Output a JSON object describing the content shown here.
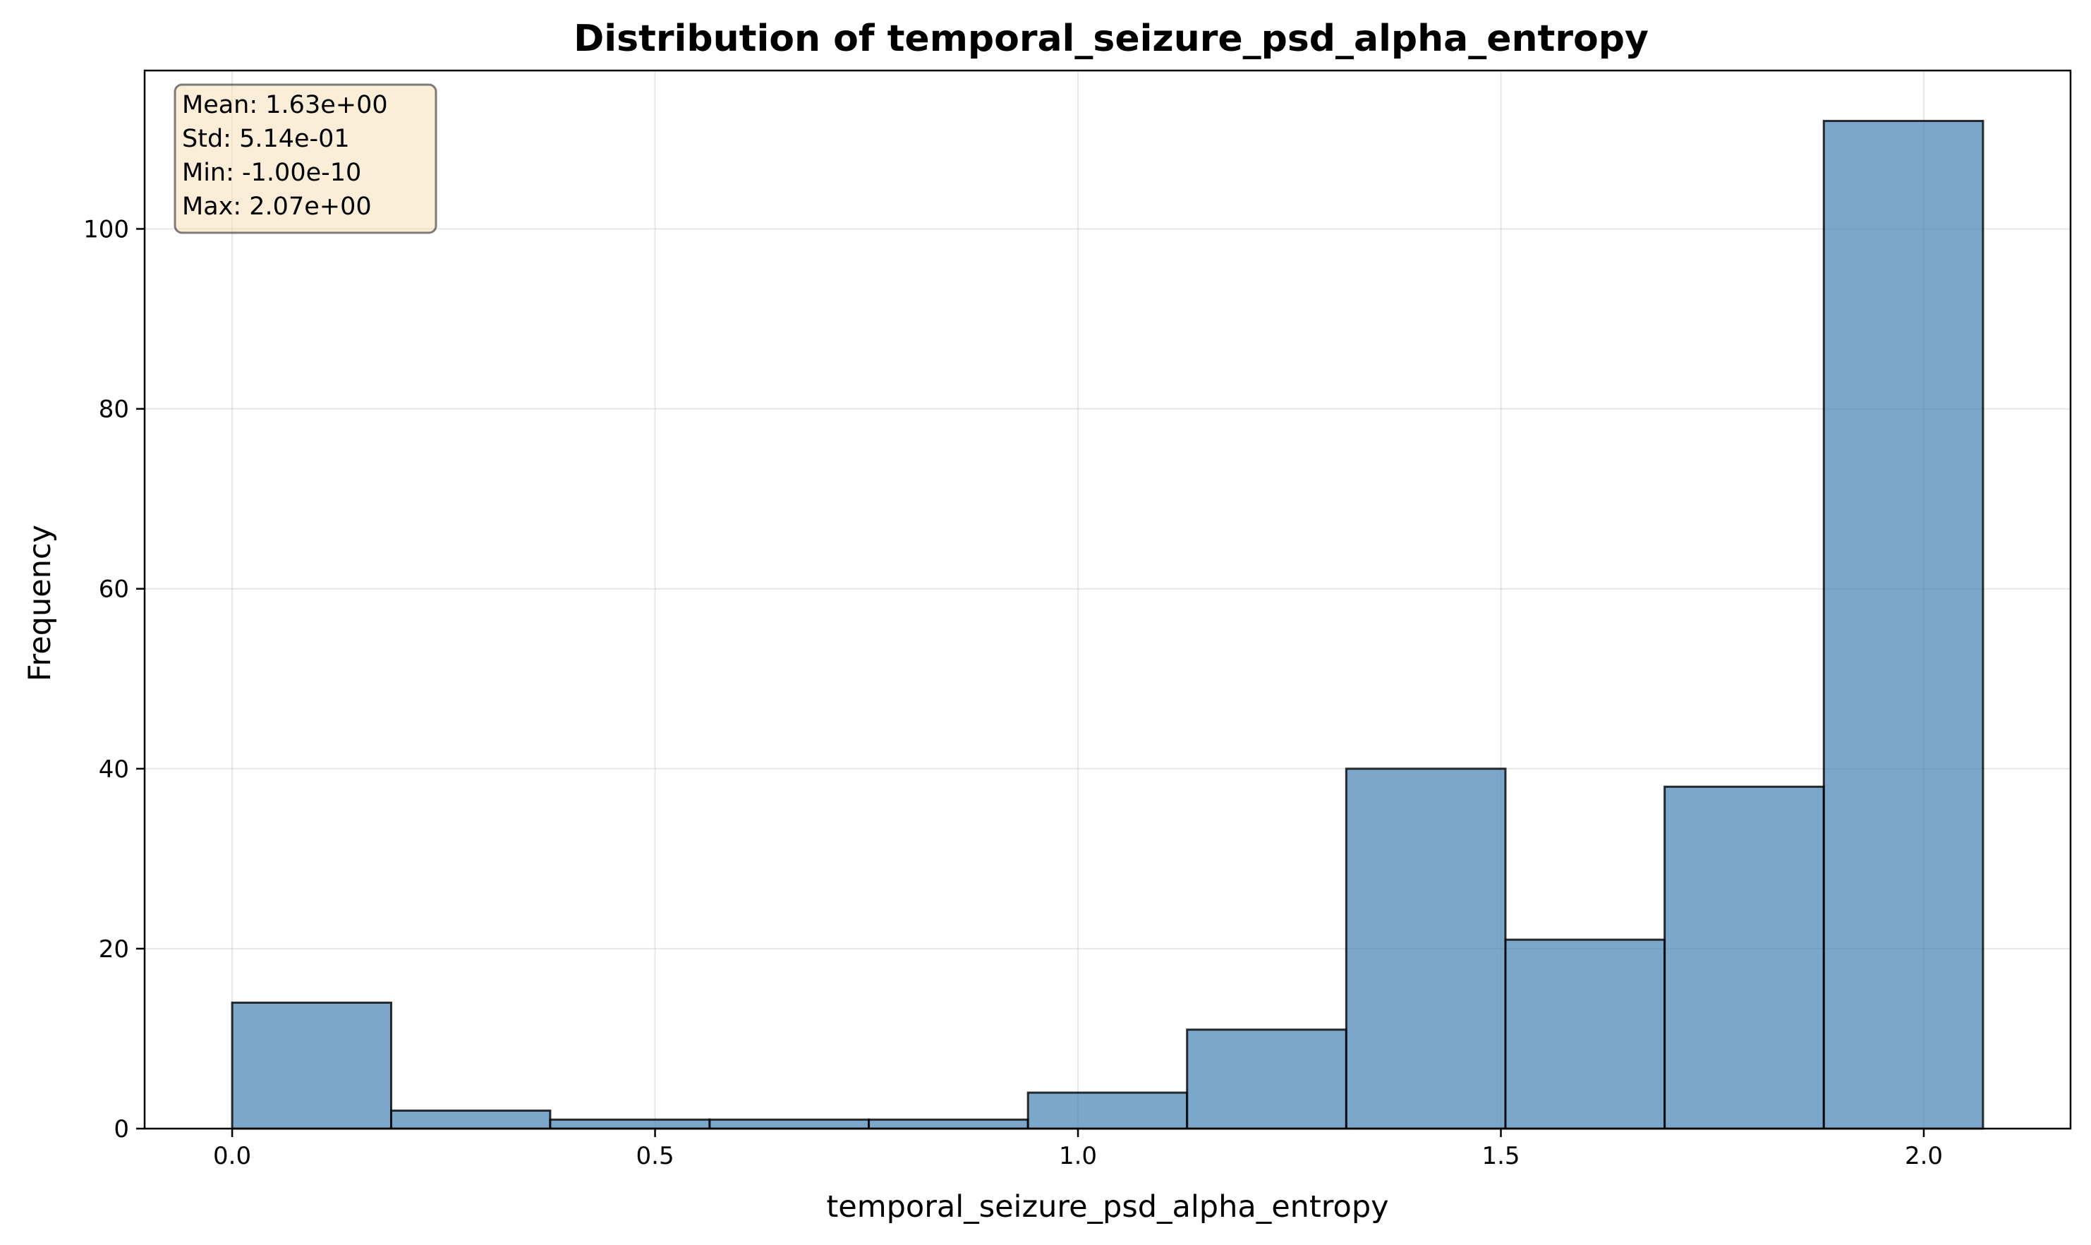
{
  "chart_data": {
    "type": "bar",
    "title": "Distribution of temporal_seizure_psd_alpha_entropy",
    "xlabel": "temporal_seizure_psd_alpha_entropy",
    "ylabel": "Frequency",
    "xlim": [
      -0.1035,
      2.1735
    ],
    "ylim": [
      0,
      117.6
    ],
    "xticks": [
      0.0,
      0.5,
      1.0,
      1.5,
      2.0
    ],
    "xtick_labels": [
      "0.0",
      "0.5",
      "1.0",
      "1.5",
      "2.0"
    ],
    "yticks": [
      0,
      20,
      40,
      60,
      80,
      100
    ],
    "ytick_labels": [
      "0",
      "20",
      "40",
      "60",
      "80",
      "100"
    ],
    "grid": true,
    "bar_color": "#4682b4",
    "bin_edges": [
      0.0,
      0.188,
      0.376,
      0.5645,
      0.7527,
      0.9409,
      1.129,
      1.3172,
      1.5054,
      1.6936,
      1.8818,
      2.07
    ],
    "values": [
      14,
      2,
      1,
      1,
      1,
      4,
      11,
      40,
      21,
      38,
      112
    ],
    "stats_box": {
      "placement": "top-left",
      "background": "#f5deb3",
      "lines": [
        "Mean: 1.63e+00",
        "Std: 5.14e-01",
        "Min: -1.00e-10",
        "Max: 2.07e+00"
      ]
    }
  }
}
